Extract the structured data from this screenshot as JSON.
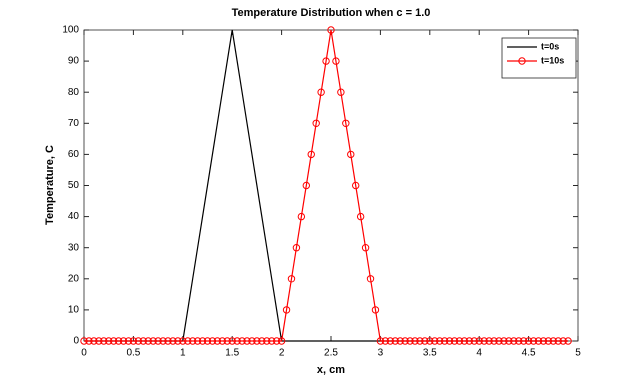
{
  "chart_data": {
    "type": "line",
    "title": "Temperature Distribution when c = 1.0",
    "xlabel": "x, cm",
    "ylabel": "Temperature, C",
    "x": [
      0,
      0.05,
      0.1,
      0.15,
      0.2,
      0.25,
      0.3,
      0.35,
      0.4,
      0.45,
      0.5,
      0.55,
      0.6,
      0.65,
      0.7,
      0.75,
      0.8,
      0.85,
      0.9,
      0.95,
      1,
      1.05,
      1.1,
      1.15,
      1.2,
      1.25,
      1.3,
      1.35,
      1.4,
      1.45,
      1.5,
      1.55,
      1.6,
      1.65,
      1.7,
      1.75,
      1.8,
      1.85,
      1.9,
      1.95,
      2,
      2.05,
      2.1,
      2.15,
      2.2,
      2.25,
      2.3,
      2.35,
      2.4,
      2.45,
      2.5,
      2.55,
      2.6,
      2.65,
      2.7,
      2.75,
      2.8,
      2.85,
      2.9,
      2.95,
      3,
      3.05,
      3.1,
      3.15,
      3.2,
      3.25,
      3.3,
      3.35,
      3.4,
      3.45,
      3.5,
      3.55,
      3.6,
      3.65,
      3.7,
      3.75,
      3.8,
      3.85,
      3.9,
      3.95,
      4,
      4.05,
      4.1,
      4.15,
      4.2,
      4.25,
      4.3,
      4.35,
      4.4,
      4.45,
      4.5,
      4.55,
      4.6,
      4.65,
      4.7,
      4.75,
      4.8,
      4.85,
      4.9
    ],
    "series": [
      {
        "name": "t=0s",
        "color": "#000000",
        "marker": "none",
        "values": [
          0,
          0,
          0,
          0,
          0,
          0,
          0,
          0,
          0,
          0,
          0,
          0,
          0,
          0,
          0,
          0,
          0,
          0,
          0,
          0,
          0,
          10,
          20,
          30,
          40,
          50,
          60,
          70,
          80,
          90,
          100,
          90,
          80,
          70,
          60,
          50,
          40,
          30,
          20,
          10,
          0,
          0,
          0,
          0,
          0,
          0,
          0,
          0,
          0,
          0,
          0,
          0,
          0,
          0,
          0,
          0,
          0,
          0,
          0,
          0,
          0,
          0,
          0,
          0,
          0,
          0,
          0,
          0,
          0,
          0,
          0,
          0,
          0,
          0,
          0,
          0,
          0,
          0,
          0,
          0,
          0,
          0,
          0,
          0,
          0,
          0,
          0,
          0,
          0,
          0,
          0,
          0,
          0,
          0,
          0,
          0,
          0,
          0,
          0
        ]
      },
      {
        "name": "t=10s",
        "color": "#ff0000",
        "marker": "o",
        "values": [
          0,
          0,
          0,
          0,
          0,
          0,
          0,
          0,
          0,
          0,
          0,
          0,
          0,
          0,
          0,
          0,
          0,
          0,
          0,
          0,
          0,
          0,
          0,
          0,
          0,
          0,
          0,
          0,
          0,
          0,
          0,
          0,
          0,
          0,
          0,
          0,
          0,
          0,
          0,
          0,
          0,
          10,
          20,
          30,
          40,
          50,
          60,
          70,
          80,
          90,
          100,
          90,
          80,
          70,
          60,
          50,
          40,
          30,
          20,
          10,
          0,
          0,
          0,
          0,
          0,
          0,
          0,
          0,
          0,
          0,
          0,
          0,
          0,
          0,
          0,
          0,
          0,
          0,
          0,
          0,
          0,
          0,
          0,
          0,
          0,
          0,
          0,
          0,
          0,
          0,
          0,
          0,
          0,
          0,
          0,
          0,
          0,
          0,
          0
        ]
      }
    ],
    "xlim": [
      0,
      5
    ],
    "xticks": [
      0,
      0.5,
      1,
      1.5,
      2,
      2.5,
      3,
      3.5,
      4,
      4.5,
      5
    ],
    "ylim": [
      0,
      100
    ],
    "yticks": [
      0,
      10,
      20,
      30,
      40,
      50,
      60,
      70,
      80,
      90,
      100
    ],
    "grid": false,
    "legend": "northeast"
  }
}
